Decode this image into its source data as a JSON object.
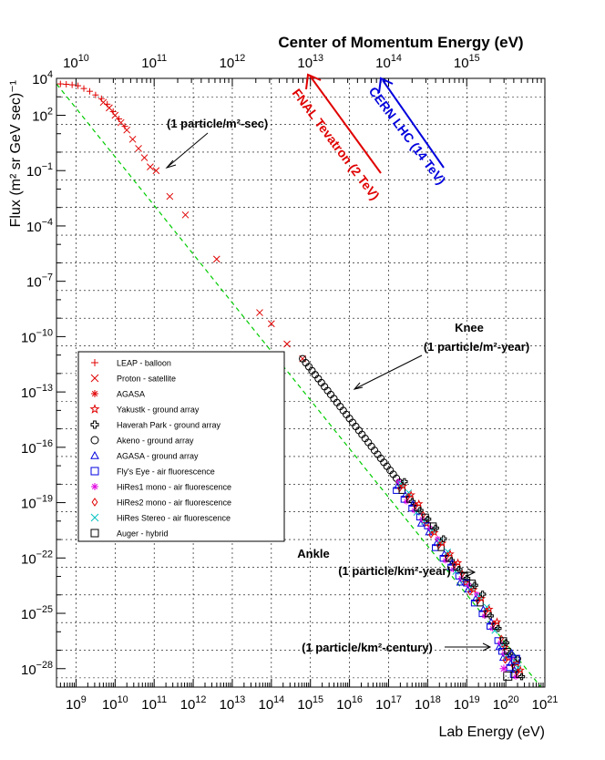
{
  "chart_data": {
    "type": "scatter",
    "title_top": "Center of Momentum Energy (eV)",
    "xlabel": "Lab Energy (eV)",
    "ylabel": "Flux (m² sr GeV sec)⁻¹",
    "x_log_range": [
      8.5,
      21
    ],
    "y_log_range": [
      -29,
      4
    ],
    "x_tick_exponents": [
      9,
      10,
      11,
      12,
      13,
      14,
      15,
      16,
      17,
      18,
      19,
      20,
      21
    ],
    "y_tick_exponents": [
      4,
      2,
      -1,
      -4,
      -7,
      -10,
      -13,
      -16,
      -19,
      -22,
      -25,
      -28
    ],
    "top_tick_exponents": [
      10,
      11,
      12,
      13,
      14,
      15
    ],
    "grid": true,
    "legend": {
      "placement": "left-middle",
      "entries": [
        {
          "label": "LEAP - balloon",
          "color": "#e00000",
          "marker": "plus"
        },
        {
          "label": "Proton - satellite",
          "color": "#e00000",
          "marker": "x"
        },
        {
          "label": "AGASA",
          "color": "#e00000",
          "marker": "asterisk"
        },
        {
          "label": "Yakustk - ground array",
          "color": "#e00000",
          "marker": "star"
        },
        {
          "label": "Haverah Park - ground array",
          "color": "#000000",
          "marker": "cross-open"
        },
        {
          "label": "Akeno - ground array",
          "color": "#000000",
          "marker": "circle"
        },
        {
          "label": "AGASA - ground array",
          "color": "#0000e0",
          "marker": "triangle"
        },
        {
          "label": "Fly's Eye - air fluorescence",
          "color": "#0000e0",
          "marker": "square"
        },
        {
          "label": "HiRes1 mono - air fluorescence",
          "color": "#e000e0",
          "marker": "asterisk"
        },
        {
          "label": "HiRes2 mono - air fluorescence",
          "color": "#e00000",
          "marker": "diamond"
        },
        {
          "label": "HiRes Stereo - air fluorescence",
          "color": "#00c0c0",
          "marker": "x"
        },
        {
          "label": "Auger - hybrid",
          "color": "#000000",
          "marker": "square"
        }
      ]
    },
    "fit_line": {
      "color": "#00cc00",
      "from": [
        8.5,
        3.7
      ],
      "to": [
        20.9,
        -29.0
      ]
    },
    "series": {
      "leap": [
        [
          8.6,
          3.7
        ],
        [
          8.75,
          3.68
        ],
        [
          8.9,
          3.65
        ],
        [
          9.05,
          3.6
        ],
        [
          9.2,
          3.45
        ],
        [
          9.35,
          3.3
        ],
        [
          9.5,
          3.1
        ],
        [
          9.65,
          2.9
        ],
        [
          9.8,
          2.6
        ],
        [
          9.95,
          2.2
        ],
        [
          10.1,
          1.8
        ],
        [
          10.25,
          1.4
        ]
      ],
      "proton": [
        [
          9.7,
          2.7
        ],
        [
          9.85,
          2.4
        ],
        [
          10.0,
          2.0
        ],
        [
          10.15,
          1.6
        ],
        [
          10.3,
          1.2
        ],
        [
          10.45,
          0.7
        ],
        [
          10.6,
          0.2
        ],
        [
          10.75,
          -0.3
        ],
        [
          10.9,
          -0.8
        ],
        [
          11.05,
          -1.0
        ],
        [
          11.4,
          -2.4
        ],
        [
          11.8,
          -3.4
        ],
        [
          12.6,
          -5.8
        ],
        [
          13.7,
          -8.7
        ],
        [
          14.0,
          -9.3
        ],
        [
          14.4,
          -10.4
        ],
        [
          14.8,
          -11.2
        ]
      ],
      "akeno_start": 14.8,
      "akeno_end": 17.3,
      "akeno_slope": -2.7,
      "highE_points": [
        [
          17.3,
          -18.1
        ],
        [
          17.5,
          -18.7
        ],
        [
          17.7,
          -19.3
        ],
        [
          17.9,
          -19.9
        ],
        [
          18.1,
          -20.5
        ],
        [
          18.3,
          -21.2
        ],
        [
          18.5,
          -21.9
        ],
        [
          18.7,
          -22.5
        ],
        [
          18.9,
          -23.1
        ],
        [
          19.1,
          -23.6
        ],
        [
          19.3,
          -24.2
        ],
        [
          19.5,
          -24.9
        ],
        [
          19.7,
          -25.7
        ],
        [
          19.9,
          -26.6
        ],
        [
          20.0,
          -27.3
        ],
        [
          20.2,
          -27.7
        ],
        [
          20.3,
          -28.2
        ]
      ]
    }
  },
  "annotations": {
    "one_per_sec": "(1 particle/m²-sec)",
    "knee_title": "Knee",
    "knee_rate": "(1 particle/m²-year)",
    "ankle_title": "Ankle",
    "ankle_rate": "(1 particle/km²-year)",
    "century_rate": "(1 particle/km²-century)",
    "fnal_label": "FNAL Tevatron (2 TeV)",
    "cern_label": "CERN LHC (14 TeV)"
  },
  "colors": {
    "fnal": "#e00000",
    "cern": "#0000dd",
    "fit": "#00cc00",
    "grid": "#000000"
  }
}
